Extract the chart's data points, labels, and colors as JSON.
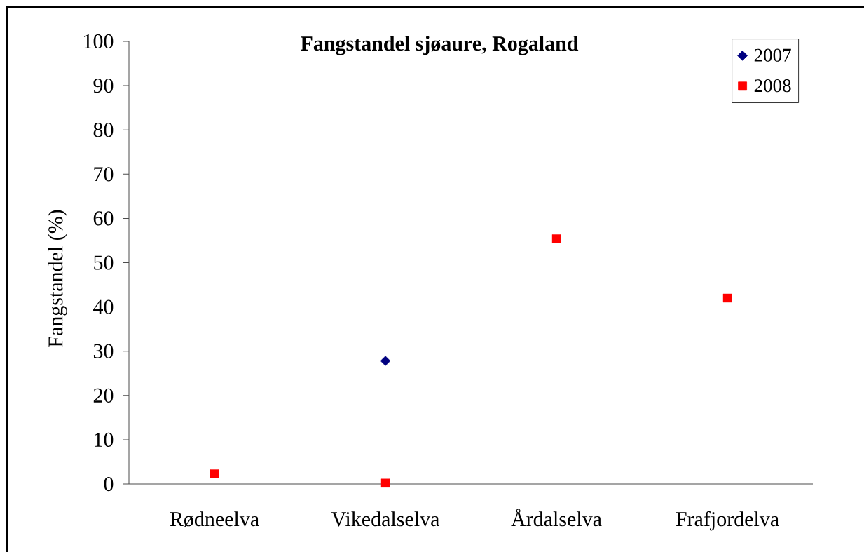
{
  "chart_data": {
    "type": "scatter",
    "title": "Fangstandel sjøaure, Rogaland",
    "ylabel": "Fangstandel (%)",
    "categories": [
      "Rødneelva",
      "Vikedalselva",
      "Årdalselva",
      "Frafjordelva"
    ],
    "series": [
      {
        "name": "2007",
        "color": "#000080",
        "marker": "diamond",
        "values": [
          null,
          27.8,
          null,
          null
        ]
      },
      {
        "name": "2008",
        "color": "#ff0000",
        "marker": "square",
        "values": [
          2.3,
          0.2,
          55.4,
          42.0
        ]
      }
    ],
    "ylim": [
      0,
      100
    ],
    "yticks": [
      0,
      10,
      20,
      30,
      40,
      50,
      60,
      70,
      80,
      90,
      100
    ],
    "legend": "top right"
  }
}
